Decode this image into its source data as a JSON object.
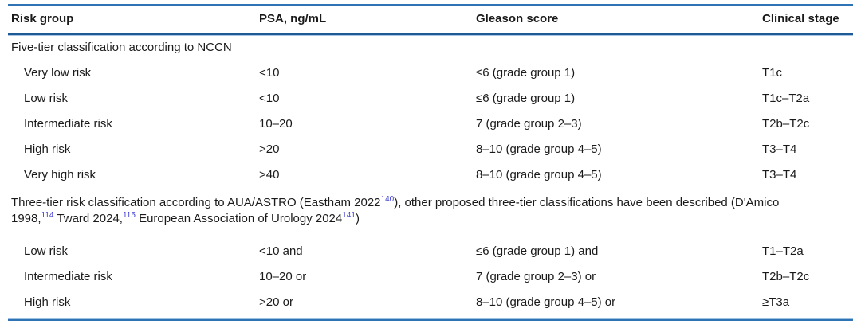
{
  "colors": {
    "rule_blue": "#2e74b5",
    "rule_dark": "#1f5a96",
    "rule_light": "#a9c6e4",
    "citation_blue": "#3f3fd3",
    "text": "#1a1a1a"
  },
  "table": {
    "columns": {
      "risk_group": "Risk group",
      "psa": "PSA, ng/mL",
      "gleason": "Gleason score",
      "stage": "Clinical stage"
    },
    "sections": [
      {
        "title_lines": [
          [
            {
              "text": "Five-tier classification according to NCCN"
            }
          ]
        ],
        "rows": [
          {
            "group": "Very low risk",
            "psa": "<10",
            "gleason": "≤6 (grade group 1)",
            "stage": "T1c"
          },
          {
            "group": "Low risk",
            "psa": "<10",
            "gleason": "≤6 (grade group 1)",
            "stage": "T1c–T2a"
          },
          {
            "group": "Intermediate risk",
            "psa": "10–20",
            "gleason": "7 (grade group 2–3)",
            "stage": "T2b–T2c"
          },
          {
            "group": "High risk",
            "psa": ">20",
            "gleason": "8–10 (grade group 4–5)",
            "stage": "T3–T4"
          },
          {
            "group": "Very high risk",
            "psa": ">40",
            "gleason": "8–10 (grade group 4–5)",
            "stage": "T3–T4"
          }
        ]
      },
      {
        "title_lines": [
          [
            {
              "text": "Three-tier risk classification according to AUA/ASTRO (Eastham 2022"
            },
            {
              "sup": "140"
            },
            {
              "text": "), other proposed three-tier classifications have been described (D'Amico"
            }
          ],
          [
            {
              "text": "1998,"
            },
            {
              "sup": "114"
            },
            {
              "text": " Tward 2024,"
            },
            {
              "sup": "115"
            },
            {
              "text": " European Association of Urology 2024"
            },
            {
              "sup": "141"
            },
            {
              "text": ")"
            }
          ]
        ],
        "rows": [
          {
            "group": "Low risk",
            "psa": "<10 and",
            "gleason": "≤6 (grade group 1) and",
            "stage": "T1–T2a"
          },
          {
            "group": "Intermediate risk",
            "psa": "10–20 or",
            "gleason": "7 (grade group 2–3) or",
            "stage": "T2b–T2c"
          },
          {
            "group": "High risk",
            "psa": ">20 or",
            "gleason": "8–10 (grade group 4–5) or",
            "stage": "≥T3a"
          }
        ]
      }
    ]
  }
}
